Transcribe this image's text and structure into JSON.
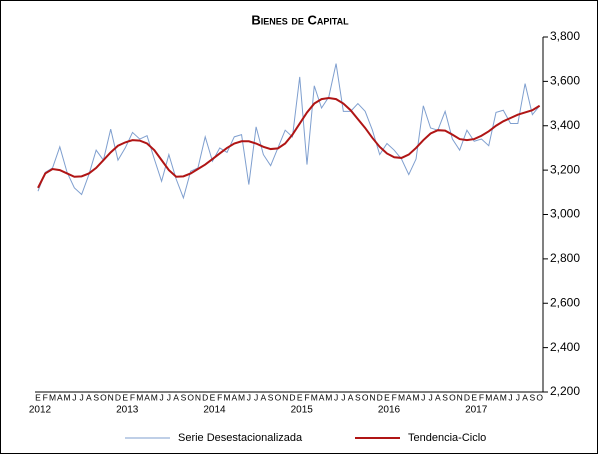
{
  "chart_data": {
    "type": "line",
    "title": "Bienes de Capital",
    "categories": [
      "E",
      "F",
      "M",
      "A",
      "M",
      "J",
      "J",
      "A",
      "S",
      "O",
      "N",
      "D",
      "E",
      "F",
      "M",
      "A",
      "M",
      "J",
      "J",
      "A",
      "S",
      "O",
      "N",
      "D",
      "E",
      "F",
      "M",
      "A",
      "M",
      "J",
      "J",
      "A",
      "S",
      "O",
      "N",
      "D",
      "E",
      "F",
      "M",
      "A",
      "M",
      "J",
      "J",
      "A",
      "S",
      "O",
      "N",
      "D",
      "E",
      "F",
      "M",
      "A",
      "M",
      "J",
      "J",
      "A",
      "S",
      "O",
      "N",
      "D",
      "E",
      "F",
      "M",
      "A",
      "M",
      "J",
      "J",
      "A",
      "S",
      "O"
    ],
    "years": [
      "2012",
      "2013",
      "2014",
      "2015",
      "2016",
      "2017"
    ],
    "series": [
      {
        "name": "Serie Desestacionalizada",
        "color": "#7f9fcf",
        "width": 1,
        "values": [
          3105,
          3190,
          3210,
          3305,
          3190,
          3120,
          3090,
          3180,
          3290,
          3245,
          3385,
          3245,
          3300,
          3370,
          3340,
          3355,
          3250,
          3150,
          3270,
          3160,
          3075,
          3195,
          3210,
          3350,
          3240,
          3300,
          3280,
          3350,
          3360,
          3135,
          3395,
          3270,
          3220,
          3300,
          3380,
          3350,
          3620,
          3225,
          3580,
          3480,
          3530,
          3680,
          3465,
          3465,
          3500,
          3465,
          3380,
          3270,
          3320,
          3290,
          3250,
          3180,
          3250,
          3490,
          3390,
          3380,
          3465,
          3340,
          3290,
          3380,
          3330,
          3340,
          3310,
          3460,
          3470,
          3410,
          3410,
          3590,
          3450,
          3490
        ]
      },
      {
        "name": "Tendencia-Ciclo",
        "color": "#b01515",
        "width": 2,
        "values": [
          3120,
          3185,
          3205,
          3200,
          3185,
          3170,
          3172,
          3185,
          3210,
          3245,
          3280,
          3310,
          3325,
          3335,
          3333,
          3320,
          3290,
          3245,
          3200,
          3170,
          3172,
          3185,
          3205,
          3225,
          3250,
          3275,
          3300,
          3320,
          3330,
          3330,
          3320,
          3305,
          3295,
          3298,
          3320,
          3360,
          3410,
          3460,
          3500,
          3520,
          3525,
          3520,
          3500,
          3470,
          3430,
          3390,
          3345,
          3305,
          3275,
          3258,
          3255,
          3270,
          3300,
          3335,
          3365,
          3380,
          3378,
          3360,
          3340,
          3335,
          3340,
          3355,
          3375,
          3400,
          3420,
          3435,
          3450,
          3460,
          3470,
          3490
        ]
      }
    ],
    "ylim": [
      2200,
      3800
    ],
    "yticks": [
      {
        "value": 2200,
        "label": "2,200"
      },
      {
        "value": 2400,
        "label": "2,400"
      },
      {
        "value": 2600,
        "label": "2,600"
      },
      {
        "value": 2800,
        "label": "2,800"
      },
      {
        "value": 3000,
        "label": "3,000"
      },
      {
        "value": 3200,
        "label": "3,200"
      },
      {
        "value": 3400,
        "label": "3,400"
      },
      {
        "value": 3600,
        "label": "3,600"
      },
      {
        "value": 3800,
        "label": "3,800"
      }
    ]
  }
}
